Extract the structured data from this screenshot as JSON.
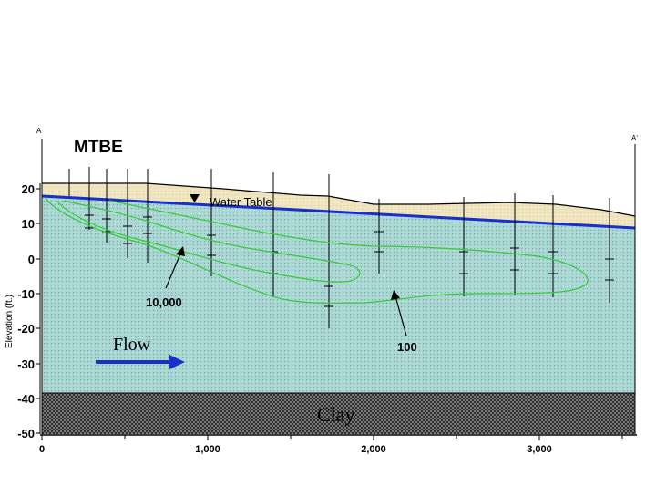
{
  "title": "MTBE",
  "section_start_label": "A",
  "section_end_label": "A'",
  "water_table_label": "Water Table",
  "flow_label": "Flow",
  "clay_label": "Clay",
  "contour_labels": [
    "10,000",
    "100"
  ],
  "y_axis": {
    "label": "Elevation (ft.)",
    "ticks": [
      "20",
      "10",
      "0",
      "-10",
      "-20",
      "-30",
      "-40",
      "-50"
    ]
  },
  "x_axis": {
    "ticks": [
      "0",
      "1,000",
      "2,000",
      "3,000"
    ]
  },
  "colors": {
    "water_table": "#1a2ecc",
    "plume_contour": "#33cc33",
    "flow_arrow": "#1a2ecc",
    "aquifer": "#a9d5d2",
    "vadose": "#efe5c0",
    "clay": "#6f6f6f"
  }
}
